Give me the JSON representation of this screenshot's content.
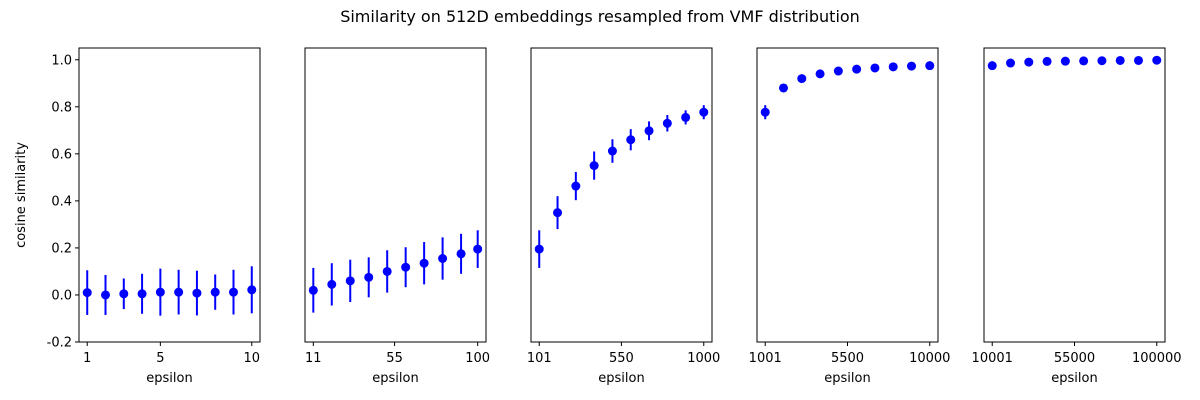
{
  "figure": {
    "title": "Similarity on 512D embeddings resampled from VMF distribution",
    "ylabel": "cosine similarity"
  },
  "chart_data": [
    {
      "type": "scatter",
      "xlabel": "epsilon",
      "ylabel": "cosine similarity",
      "xlim": [
        0.55,
        10.45
      ],
      "ylim": [
        -0.2,
        1.05
      ],
      "yticks": [
        -0.2,
        0.0,
        0.2,
        0.4,
        0.6,
        0.8,
        1.0
      ],
      "xticks": [
        1,
        5,
        10
      ],
      "xtick_labels": [
        "1",
        "5",
        "10"
      ],
      "color": "#0000ff",
      "x": [
        1,
        2,
        3,
        4,
        5,
        6,
        7,
        8,
        9,
        10
      ],
      "y": [
        0.01,
        0.0,
        0.005,
        0.005,
        0.012,
        0.012,
        0.008,
        0.012,
        0.012,
        0.022
      ],
      "err": [
        0.095,
        0.085,
        0.065,
        0.085,
        0.1,
        0.095,
        0.095,
        0.075,
        0.095,
        0.1
      ]
    },
    {
      "type": "scatter",
      "xlabel": "epsilon",
      "ylabel": "",
      "xlim": [
        6.5,
        104.5
      ],
      "ylim": [
        -0.2,
        1.05
      ],
      "yticks": [],
      "xticks": [
        11,
        55,
        100
      ],
      "xtick_labels": [
        "11",
        "55",
        "100"
      ],
      "color": "#0000ff",
      "x": [
        11,
        21,
        31,
        41,
        51,
        61,
        71,
        81,
        91,
        100
      ],
      "y": [
        0.02,
        0.045,
        0.06,
        0.075,
        0.1,
        0.118,
        0.135,
        0.155,
        0.175,
        0.195
      ],
      "err": [
        0.095,
        0.09,
        0.09,
        0.085,
        0.09,
        0.085,
        0.09,
        0.09,
        0.085,
        0.08
      ]
    },
    {
      "type": "scatter",
      "xlabel": "epsilon",
      "ylabel": "",
      "xlim": [
        56,
        1045
      ],
      "ylim": [
        -0.2,
        1.05
      ],
      "yticks": [],
      "xticks": [
        101,
        550,
        1000
      ],
      "xtick_labels": [
        "101",
        "550",
        "1000"
      ],
      "color": "#0000ff",
      "x": [
        101,
        201,
        301,
        401,
        501,
        601,
        701,
        801,
        901,
        1000
      ],
      "y": [
        0.195,
        0.35,
        0.463,
        0.55,
        0.612,
        0.66,
        0.698,
        0.73,
        0.755,
        0.777
      ],
      "err": [
        0.08,
        0.07,
        0.06,
        0.06,
        0.05,
        0.045,
        0.04,
        0.035,
        0.03,
        0.03
      ]
    },
    {
      "type": "scatter",
      "xlabel": "epsilon",
      "ylabel": "",
      "xlim": [
        551,
        10450
      ],
      "ylim": [
        -0.2,
        1.05
      ],
      "yticks": [],
      "xticks": [
        1001,
        5500,
        10000
      ],
      "xtick_labels": [
        "1001",
        "5500",
        "10000"
      ],
      "color": "#0000ff",
      "x": [
        1001,
        2001,
        3001,
        4001,
        5001,
        6001,
        7001,
        8001,
        9001,
        10000
      ],
      "y": [
        0.777,
        0.88,
        0.92,
        0.94,
        0.952,
        0.96,
        0.965,
        0.97,
        0.973,
        0.975
      ],
      "err": [
        0.03,
        0.015,
        0.01,
        0.008,
        0.006,
        0.005,
        0.004,
        0.004,
        0.003,
        0.003
      ]
    },
    {
      "type": "scatter",
      "xlabel": "epsilon",
      "ylabel": "",
      "xlim": [
        5500,
        104500
      ],
      "ylim": [
        -0.2,
        1.05
      ],
      "yticks": [],
      "xticks": [
        10001,
        55000,
        100000
      ],
      "xtick_labels": [
        "10001",
        "55000",
        "100000"
      ],
      "color": "#0000ff",
      "x": [
        10001,
        20001,
        30001,
        40001,
        50001,
        60001,
        70001,
        80001,
        90001,
        100000
      ],
      "y": [
        0.975,
        0.986,
        0.99,
        0.993,
        0.994,
        0.995,
        0.996,
        0.997,
        0.997,
        0.998
      ],
      "err": [
        0.003,
        0.002,
        0.002,
        0.001,
        0.001,
        0.001,
        0.001,
        0.001,
        0.001,
        0.001
      ]
    }
  ]
}
